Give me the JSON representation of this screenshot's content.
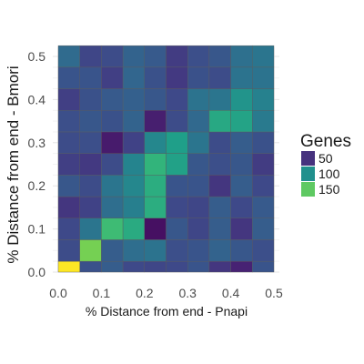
{
  "chart_data": {
    "type": "heatmap",
    "title": "",
    "xlabel": "% Distance from end - Pnapi",
    "ylabel": "% Distance from end - Bmori",
    "xlim": [
      0,
      0.5
    ],
    "ylim": [
      0,
      0.5
    ],
    "x_ticks": [
      "0.0",
      "0.1",
      "0.2",
      "0.3",
      "0.4",
      "0.5"
    ],
    "y_ticks": [
      "0.0",
      "0.1",
      "0.2",
      "0.3",
      "0.4",
      "0.5"
    ],
    "bin_width": 0.05,
    "grid": true,
    "legend": {
      "title": "Genes",
      "position": "right",
      "entries": [
        "50",
        "100",
        "150"
      ],
      "colors": [
        "#46327e",
        "#21908d",
        "#5ec962"
      ]
    },
    "color_scale": {
      "name": "viridis",
      "stops": [
        "#440154",
        "#482878",
        "#3e4989",
        "#31688e",
        "#26828e",
        "#1f9e89",
        "#35b779",
        "#6ece58",
        "#b5de2b",
        "#fde725"
      ]
    },
    "z": [
      [
        200,
        58,
        66,
        52,
        50,
        52,
        60,
        40,
        28,
        60
      ],
      [
        54,
        160,
        66,
        78,
        82,
        56,
        60,
        70,
        62,
        56
      ],
      [
        52,
        84,
        140,
        126,
        18,
        62,
        50,
        66,
        40,
        66
      ],
      [
        40,
        48,
        78,
        92,
        128,
        52,
        50,
        66,
        52,
        64
      ],
      [
        62,
        54,
        84,
        98,
        128,
        60,
        60,
        40,
        66,
        52
      ],
      [
        46,
        42,
        54,
        96,
        134,
        118,
        62,
        56,
        62,
        44
      ],
      [
        54,
        56,
        24,
        48,
        98,
        116,
        84,
        54,
        66,
        58
      ],
      [
        56,
        62,
        58,
        70,
        26,
        54,
        74,
        124,
        120,
        88
      ],
      [
        46,
        58,
        64,
        68,
        62,
        52,
        82,
        84,
        108,
        94
      ],
      [
        60,
        60,
        46,
        72,
        58,
        42,
        58,
        54,
        82,
        82
      ],
      [
        76,
        50,
        54,
        70,
        64,
        44,
        56,
        62,
        80,
        84
      ]
    ]
  }
}
